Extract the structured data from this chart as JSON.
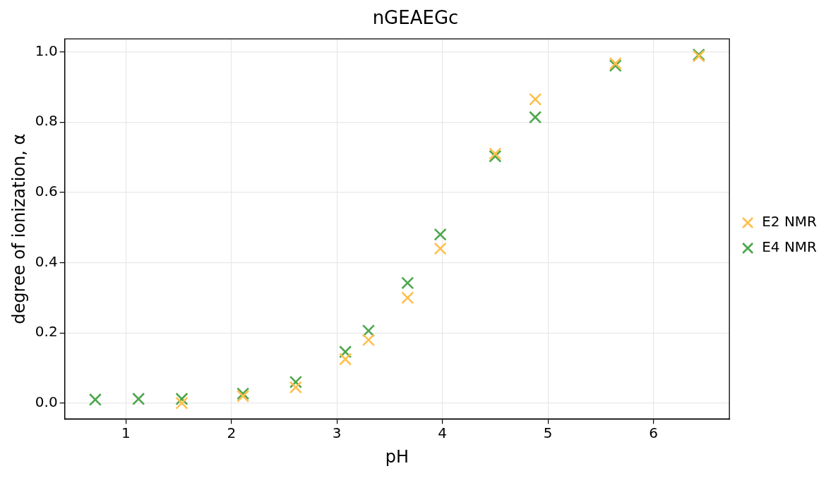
{
  "chart_data": {
    "type": "scatter",
    "title": "nGEAEGc",
    "xlabel": "pH",
    "ylabel": "degree of ionization, α",
    "xlim": [
      0.42,
      6.72
    ],
    "xticks": [
      1,
      2,
      3,
      4,
      5,
      6
    ],
    "ylim": [
      -0.045,
      1.037
    ],
    "yticks": [
      {
        "value": 0,
        "label": "0.0"
      },
      {
        "value": 0.2,
        "label": "0.2"
      },
      {
        "value": 0.4,
        "label": "0.4"
      },
      {
        "value": 0.6,
        "label": "0.6"
      },
      {
        "value": 0.8,
        "label": "0.8"
      },
      {
        "value": 1,
        "label": "1.0"
      }
    ],
    "grid": true,
    "legend": "right",
    "marker": "cross",
    "series": [
      {
        "name": "E2 NMR",
        "color": "#ffbf4d",
        "x": [
          1.53,
          2.11,
          2.61,
          3.08,
          3.3,
          3.67,
          3.98,
          4.5,
          4.88,
          5.64,
          6.43
        ],
        "values": [
          0.0,
          0.02,
          0.045,
          0.125,
          0.18,
          0.3,
          0.44,
          0.71,
          0.865,
          0.967,
          0.988
        ]
      },
      {
        "name": "E4 NMR",
        "color": "#4ca64c",
        "x": [
          0.71,
          1.12,
          1.53,
          2.11,
          2.61,
          3.08,
          3.3,
          3.67,
          3.98,
          4.5,
          4.88,
          5.64,
          6.43
        ],
        "values": [
          0.01,
          0.012,
          0.012,
          0.027,
          0.06,
          0.146,
          0.206,
          0.342,
          0.48,
          0.703,
          0.814,
          0.961,
          0.992
        ]
      }
    ]
  }
}
